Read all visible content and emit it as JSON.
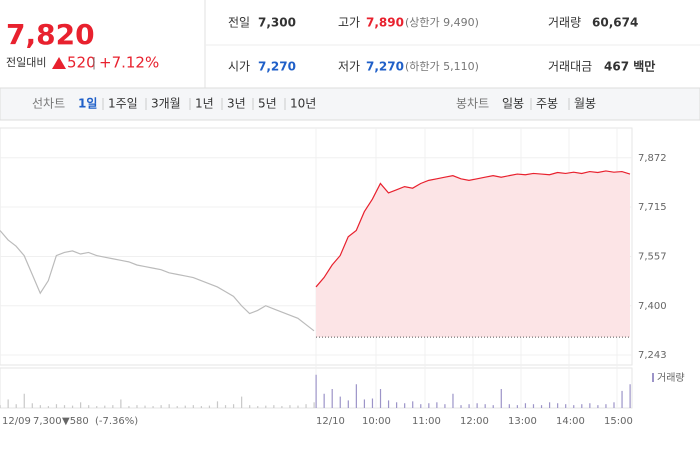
{
  "quote": {
    "price": "7,820",
    "change_label": "전일대비",
    "change": "520",
    "change_pct": "+7.12%"
  },
  "stats": [
    {
      "label": "전일",
      "value": "7,300"
    },
    {
      "label": "고가",
      "value": "7,890",
      "note": "(상한가 9,490)"
    },
    {
      "label": "거래량",
      "value": "60,674"
    },
    {
      "label": "시가",
      "value": "7,270"
    },
    {
      "label": "저가",
      "value": "7,270",
      "note": "(하한가 5,110)"
    },
    {
      "label": "거래대금",
      "value": "467 백만"
    }
  ],
  "tabs": {
    "line_label": "선차트",
    "line_tabs": [
      "1일",
      "1주일",
      "3개월",
      "1년",
      "3년",
      "5년",
      "10년"
    ],
    "candle_label": "봉차트",
    "candle_tabs": [
      "일봉",
      "주봉",
      "월봉"
    ]
  },
  "chart_data": {
    "type": "line",
    "ylim": [
      7211,
      7967
    ],
    "yticks": [
      {
        "value": 7243,
        "label": "7,243"
      },
      {
        "value": 7400,
        "label": "7,400"
      },
      {
        "value": 7557,
        "label": "7,557"
      },
      {
        "value": 7715,
        "label": "7,715"
      },
      {
        "value": 7872,
        "label": "7,872"
      }
    ],
    "x_labels": [
      "12/09",
      "12/10",
      "10:00",
      "11:00",
      "12:00",
      "13:00",
      "14:00",
      "15:00"
    ],
    "baseline": 7300,
    "series": [
      {
        "color": "#bbbbbb",
        "values": [
          7640,
          7610,
          7590,
          7560,
          7500,
          7440,
          7480,
          7560,
          7570,
          7575,
          7565,
          7570,
          7560,
          7555,
          7550,
          7545,
          7540,
          7530,
          7525,
          7520,
          7515,
          7505,
          7500,
          7495,
          7490,
          7480,
          7470,
          7460,
          7445,
          7430,
          7400,
          7375,
          7385,
          7400,
          7390,
          7380,
          7370,
          7360,
          7340,
          7320
        ]
      },
      {
        "color": "#e8212e",
        "fill": "#fce4e6",
        "values": [
          7460,
          7490,
          7530,
          7560,
          7620,
          7640,
          7700,
          7740,
          7790,
          7760,
          7770,
          7780,
          7775,
          7790,
          7800,
          7805,
          7810,
          7815,
          7805,
          7800,
          7805,
          7810,
          7815,
          7810,
          7815,
          7820,
          7818,
          7822,
          7820,
          7818,
          7825,
          7822,
          7826,
          7822,
          7828,
          7825,
          7830,
          7826,
          7828,
          7820
        ]
      }
    ],
    "volume": {
      "name": "거래량",
      "ylim": [
        0,
        4000
      ],
      "colors": [
        "#c8c8c8",
        "#9c94c8"
      ],
      "values": [
        [
          300,
          900,
          400,
          1500,
          500,
          300,
          200,
          400,
          300,
          250,
          600,
          300,
          200,
          250,
          300,
          900,
          200,
          300,
          250,
          200,
          300,
          400,
          200,
          250,
          300,
          200,
          250,
          700,
          300,
          400,
          1200,
          300,
          200,
          250,
          300,
          200,
          300,
          250,
          400,
          600
        ],
        [
          3500,
          1500,
          2000,
          1200,
          800,
          2500,
          900,
          1000,
          2000,
          800,
          600,
          500,
          700,
          400,
          500,
          600,
          400,
          1500,
          300,
          400,
          500,
          400,
          300,
          2000,
          400,
          300,
          500,
          400,
          300,
          600,
          500,
          400,
          300,
          400,
          500,
          300,
          400,
          600,
          1800,
          2500
        ]
      ]
    },
    "prev_summary": {
      "close": "7,300",
      "change": "▼580",
      "pct": "(-7.36%)"
    }
  }
}
